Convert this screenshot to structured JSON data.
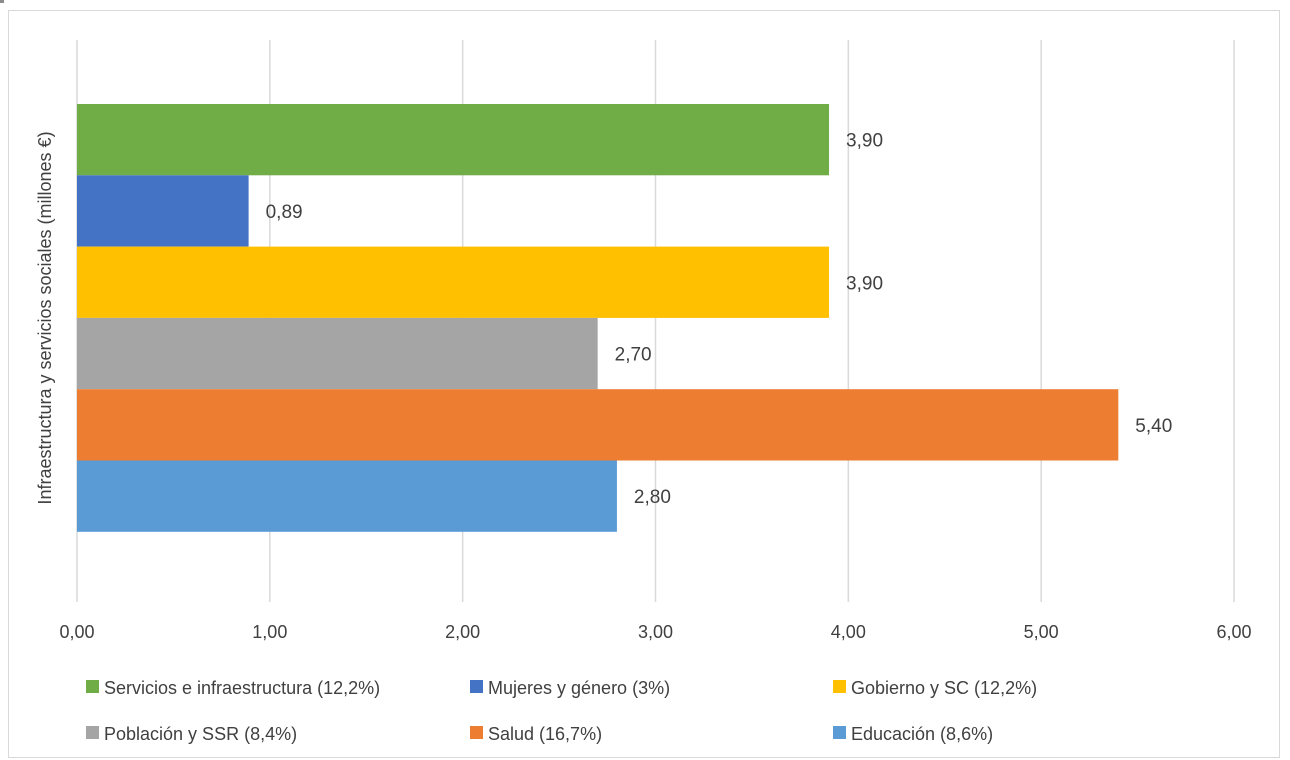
{
  "chart_data": {
    "type": "bar",
    "orientation": "horizontal",
    "ylabel": "Infraestructura y servicios sociales (millones €)",
    "xlim": [
      0,
      6
    ],
    "grid": true,
    "legend_position": "bottom",
    "x_ticks": [
      "0,00",
      "1,00",
      "2,00",
      "3,00",
      "4,00",
      "5,00",
      "6,00"
    ],
    "series": [
      {
        "name": "Servicios e infraestructura (12,2%)",
        "value": 3.9,
        "label": "3,90",
        "color": "#70ad47"
      },
      {
        "name": "Mujeres y género (3%)",
        "value": 0.89,
        "label": "0,89",
        "color": "#4472c4"
      },
      {
        "name": "Gobierno y SC (12,2%)",
        "value": 3.9,
        "label": "3,90",
        "color": "#ffc000"
      },
      {
        "name": "Población y SSR (8,4%)",
        "value": 2.7,
        "label": "2,70",
        "color": "#a5a5a5"
      },
      {
        "name": "Salud (16,7%)",
        "value": 5.4,
        "label": "5,40",
        "color": "#ed7d31"
      },
      {
        "name": "Educación (8,6%)",
        "value": 2.8,
        "label": "2,80",
        "color": "#5b9bd5"
      }
    ]
  }
}
